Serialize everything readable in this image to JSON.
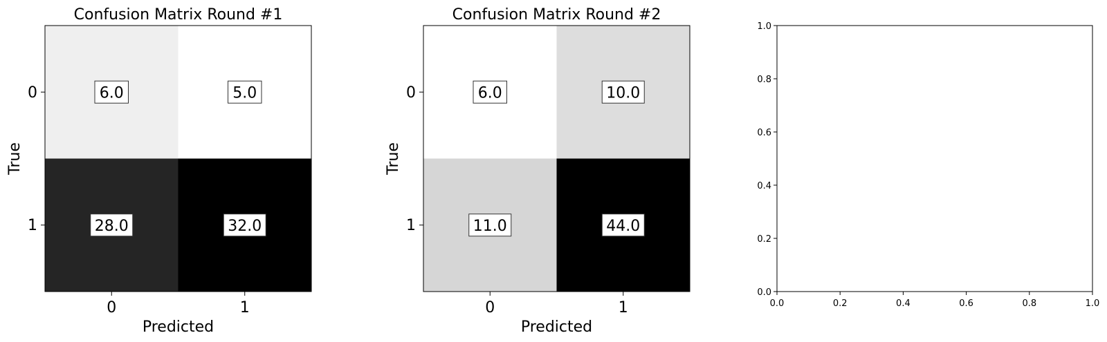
{
  "chart_data": [
    {
      "type": "heatmap",
      "title": "Confusion Matrix Round #1",
      "xlabel": "Predicted",
      "ylabel": "True",
      "x_ticks": [
        "0",
        "1"
      ],
      "y_ticks": [
        "0",
        "1"
      ],
      "values": [
        [
          6.0,
          5.0
        ],
        [
          28.0,
          32.0
        ]
      ],
      "value_labels": [
        [
          "6.0",
          "5.0"
        ],
        [
          "28.0",
          "32.0"
        ]
      ],
      "colormap": "Greys",
      "value_range": [
        5.0,
        32.0
      ],
      "annotation_box": true
    },
    {
      "type": "heatmap",
      "title": "Confusion Matrix Round #2",
      "xlabel": "Predicted",
      "ylabel": "True",
      "x_ticks": [
        "0",
        "1"
      ],
      "y_ticks": [
        "0",
        "1"
      ],
      "values": [
        [
          6.0,
          10.0
        ],
        [
          11.0,
          44.0
        ]
      ],
      "value_labels": [
        [
          "6.0",
          "10.0"
        ],
        [
          "11.0",
          "44.0"
        ]
      ],
      "colormap": "Greys",
      "value_range": [
        6.0,
        44.0
      ],
      "annotation_box": true
    },
    {
      "type": "scatter",
      "title": "",
      "xlabel": "",
      "ylabel": "",
      "series": [],
      "xlim": [
        0.0,
        1.0
      ],
      "ylim": [
        0.0,
        1.0
      ],
      "x_ticks": [
        "0.0",
        "0.2",
        "0.4",
        "0.6",
        "0.8",
        "1.0"
      ],
      "y_ticks": [
        "0.0",
        "0.2",
        "0.4",
        "0.6",
        "0.8",
        "1.0"
      ]
    }
  ]
}
